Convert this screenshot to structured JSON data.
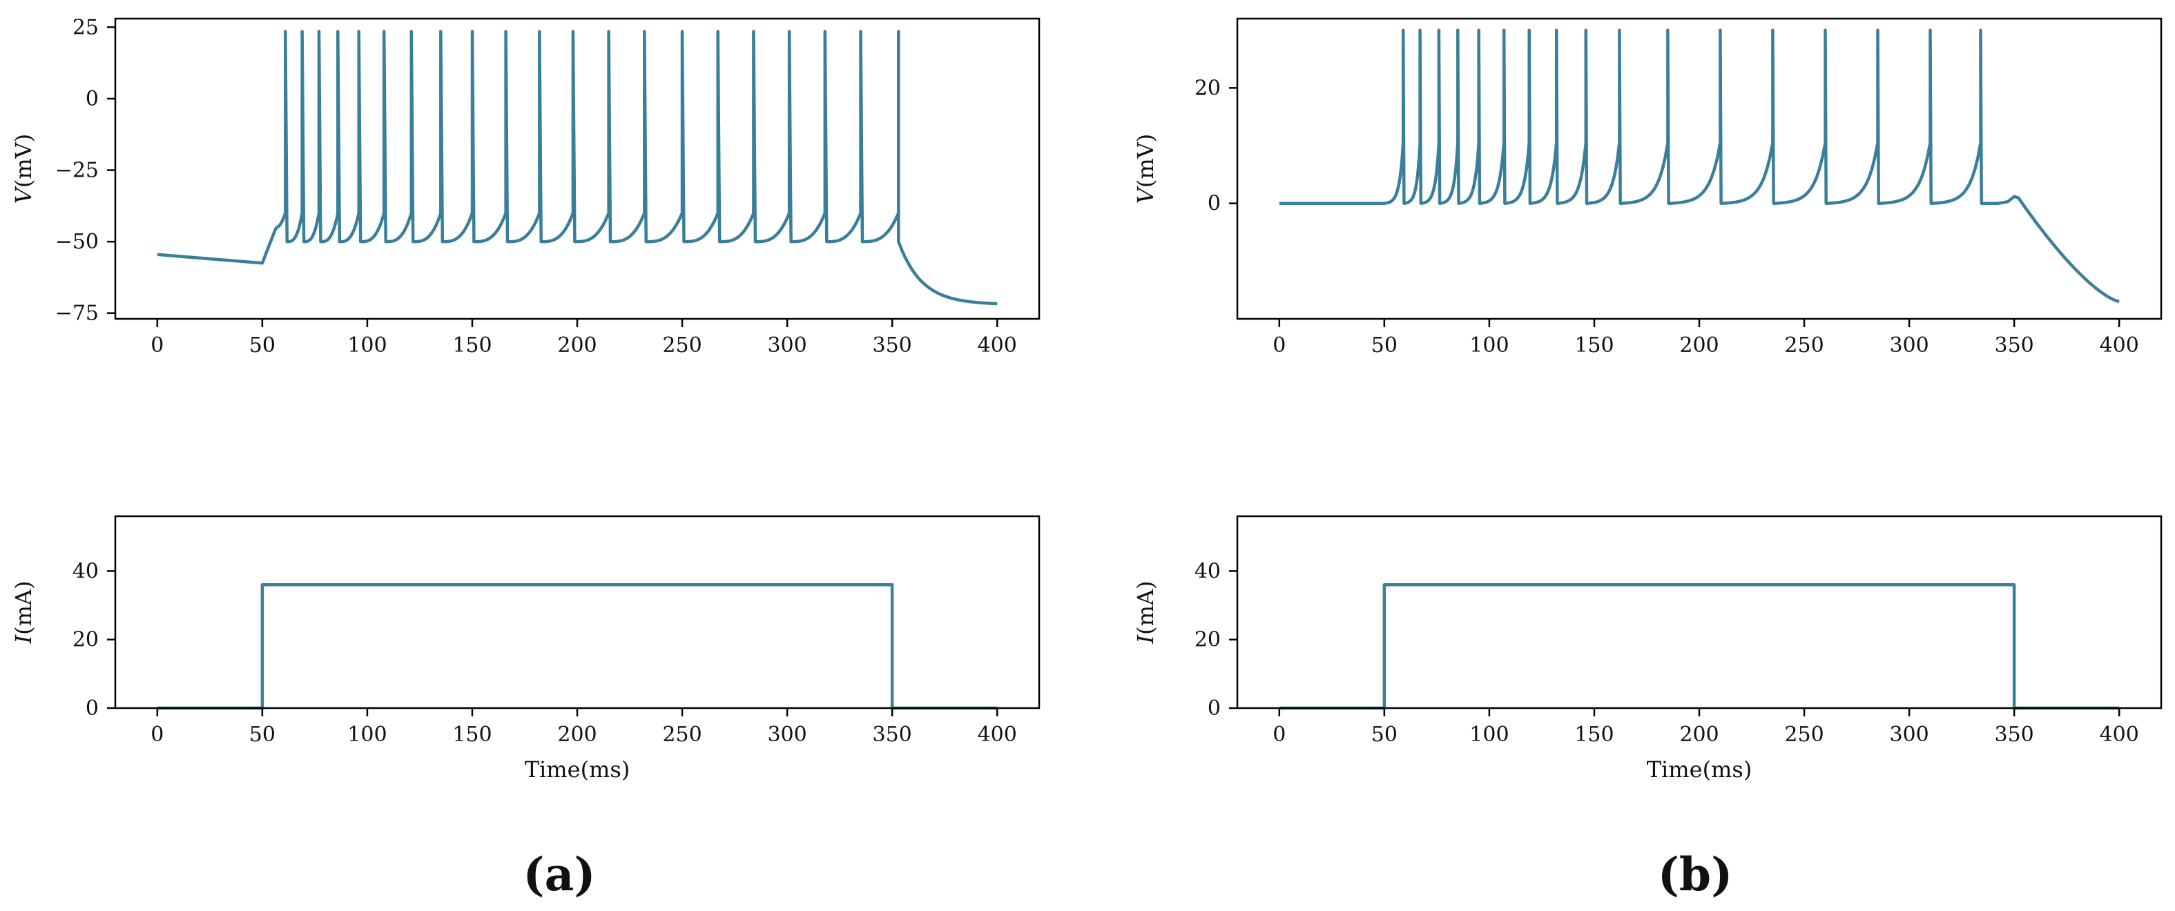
{
  "chart_data": [
    {
      "type": "line",
      "panel": "a",
      "ylabel": "V(mV)",
      "xlabel": "",
      "xlim": [
        -20,
        420
      ],
      "ylim": [
        -77,
        28
      ],
      "xticks": [
        0,
        50,
        100,
        150,
        200,
        250,
        300,
        350,
        400
      ],
      "yticks": [
        -75,
        -50,
        -25,
        0,
        25
      ],
      "tick_labels_x": [
        "0",
        "50",
        "100",
        "150",
        "200",
        "250",
        "300",
        "350",
        "400"
      ],
      "tick_labels_y": [
        "−75",
        "−50",
        "−25",
        "0",
        "25"
      ],
      "series": [
        {
          "model": "spiking",
          "rest_start": -54.5,
          "rest_end": -57.5,
          "stim_on": 50,
          "stim_off": 353,
          "first_spike": 61,
          "first_spike_base": -45,
          "spike_peak": 23.5,
          "reset": -50,
          "threshold": -40,
          "spike_times": [
            61,
            69,
            77,
            86,
            96,
            108,
            121,
            135,
            150,
            166,
            182,
            198,
            215,
            232,
            250,
            267,
            284,
            301,
            318,
            335,
            353
          ],
          "after_final": -72,
          "x_end": 400,
          "color": "#3a7f9a"
        }
      ]
    },
    {
      "type": "line",
      "panel": "b",
      "ylabel": "V(mV)",
      "xlabel": "",
      "xlim": [
        -20,
        420
      ],
      "ylim": [
        -20,
        32
      ],
      "xticks": [
        0,
        50,
        100,
        150,
        200,
        250,
        300,
        350,
        400
      ],
      "yticks": [
        0,
        20
      ],
      "tick_labels_x": [
        "0",
        "50",
        "100",
        "150",
        "200",
        "250",
        "300",
        "350",
        "400"
      ],
      "tick_labels_y": [
        "0",
        "20"
      ],
      "series": [
        {
          "model": "spiking",
          "rest": 0,
          "stim_on": 50,
          "stim_off": 350,
          "first_spike": 59,
          "spike_peak": 30,
          "reset": 0,
          "spike_times": [
            59,
            67,
            76,
            85,
            95,
            107,
            119,
            132,
            146,
            162,
            185,
            210,
            235,
            260,
            285,
            310,
            334
          ],
          "bump_peak": 1.2,
          "after_final": -17,
          "x_end": 400,
          "color": "#3a7f9a"
        }
      ]
    },
    {
      "type": "line",
      "panel": "a",
      "ylabel": "I(mA)",
      "xlabel": "Time(ms)",
      "xlim": [
        -20,
        420
      ],
      "ylim": [
        0,
        56
      ],
      "xticks": [
        0,
        50,
        100,
        150,
        200,
        250,
        300,
        350,
        400
      ],
      "yticks": [
        0,
        20,
        40
      ],
      "tick_labels_x": [
        "0",
        "50",
        "100",
        "150",
        "200",
        "250",
        "300",
        "350",
        "400"
      ],
      "tick_labels_y": [
        "0",
        "20",
        "40"
      ],
      "series": [
        {
          "x": [
            0,
            50,
            50,
            350,
            350,
            400
          ],
          "y": [
            0,
            0,
            36,
            36,
            0,
            0
          ],
          "color": "#3a7f9a"
        }
      ]
    },
    {
      "type": "line",
      "panel": "b",
      "ylabel": "I(mA)",
      "xlabel": "Time(ms)",
      "xlim": [
        -20,
        420
      ],
      "ylim": [
        0,
        56
      ],
      "xticks": [
        0,
        50,
        100,
        150,
        200,
        250,
        300,
        350,
        400
      ],
      "yticks": [
        0,
        20,
        40
      ],
      "tick_labels_x": [
        "0",
        "50",
        "100",
        "150",
        "200",
        "250",
        "300",
        "350",
        "400"
      ],
      "tick_labels_y": [
        "0",
        "20",
        "40"
      ],
      "series": [
        {
          "x": [
            0,
            50,
            50,
            350,
            350,
            400
          ],
          "y": [
            0,
            0,
            36,
            36,
            0,
            0
          ],
          "color": "#3a7f9a"
        }
      ]
    }
  ],
  "labels": {
    "panel_a": "(a)",
    "panel_b": "(b)"
  }
}
